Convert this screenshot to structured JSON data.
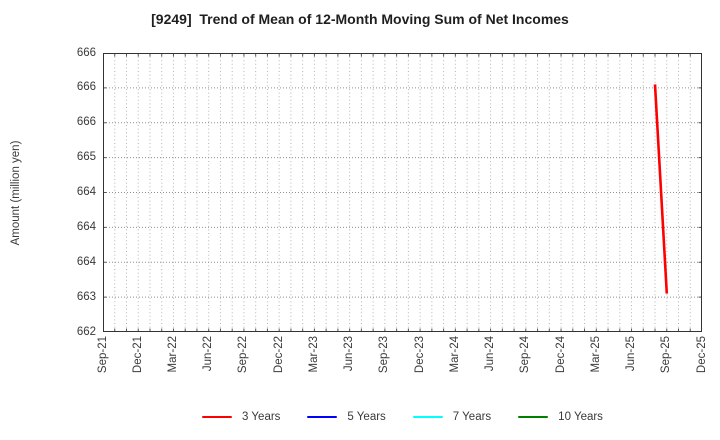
{
  "chart_data": {
    "type": "line",
    "title": "[9249]  Trend of Mean of 12-Month Moving Sum of Net Incomes",
    "xlabel": "",
    "ylabel": "Amount (million yen)",
    "x_tick_labels": [
      "Sep-21",
      "Dec-21",
      "Mar-22",
      "Jun-22",
      "Sep-22",
      "Dec-22",
      "Mar-23",
      "Jun-23",
      "Sep-23",
      "Dec-23",
      "Mar-24",
      "Jun-24",
      "Sep-24",
      "Dec-24",
      "Mar-25",
      "Jun-25",
      "Sep-25",
      "Dec-25"
    ],
    "x_axis": {
      "start_month": "Sep-21",
      "end_month": "Dec-25",
      "month_intervals": 51,
      "major_tick_every_months": 3,
      "minor_grid": "monthly"
    },
    "y_axis": {
      "min": 662.5,
      "max": 666.5,
      "tick_step": 0.5,
      "tick_labels_top_to_bottom": [
        "666",
        "666",
        "666",
        "665",
        "664",
        "664",
        "664",
        "663",
        "662"
      ]
    },
    "grid": {
      "horizontal": true,
      "vertical": true,
      "style": "dotted"
    },
    "colors": {
      "axis_border": "#333333",
      "grid_h": "#909090",
      "grid_v": "#b3b3b3",
      "tick_text": "#3a3a3a",
      "title_text": "#1f1f1f"
    },
    "legend": {
      "position": "bottom-center",
      "entries": [
        {
          "label": "3 Years",
          "color": "#ff0000"
        },
        {
          "label": "5 Years",
          "color": "#0000ff"
        },
        {
          "label": "7 Years",
          "color": "#00ffff"
        },
        {
          "label": "10 Years",
          "color": "#008000"
        }
      ]
    },
    "series": [
      {
        "name": "3 Years",
        "color": "#ff0000",
        "points": [
          {
            "x": "Aug-25",
            "y": 666.05
          },
          {
            "x": "Sep-25",
            "y": 663.05
          }
        ]
      },
      {
        "name": "5 Years",
        "color": "#0000ff",
        "points": []
      },
      {
        "name": "7 Years",
        "color": "#00ffff",
        "points": []
      },
      {
        "name": "10 Years",
        "color": "#008000",
        "points": []
      }
    ]
  }
}
